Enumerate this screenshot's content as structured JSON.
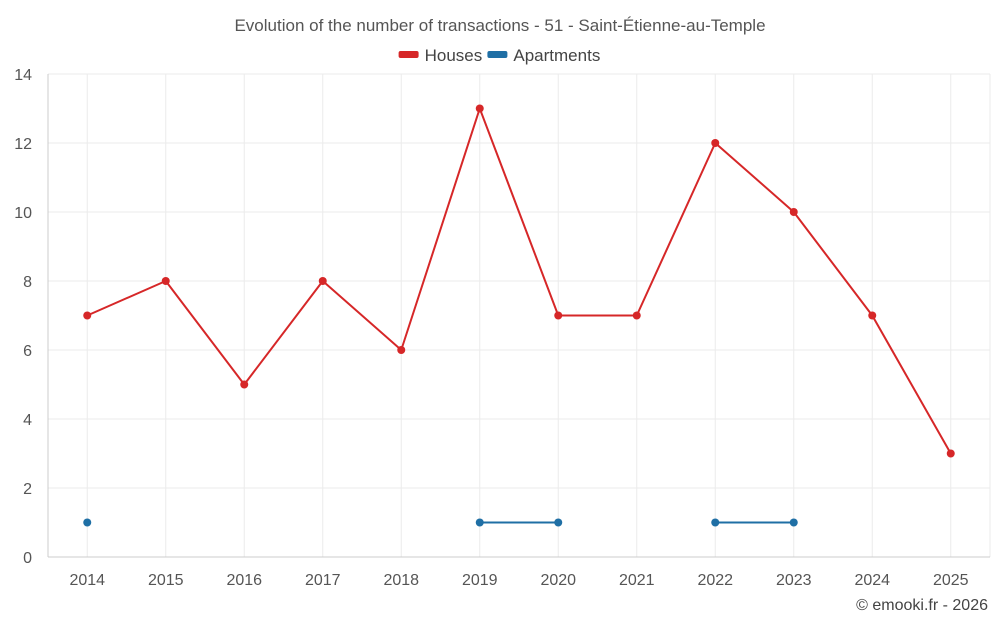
{
  "chart_data": {
    "type": "line",
    "title": "Evolution of the number of transactions - 51 - Saint-Étienne-au-Temple",
    "categories": [
      "2014",
      "2015",
      "2016",
      "2017",
      "2018",
      "2019",
      "2020",
      "2021",
      "2022",
      "2023",
      "2024",
      "2025"
    ],
    "series": [
      {
        "name": "Houses",
        "color": "#d62728",
        "values": [
          7,
          8,
          5,
          8,
          6,
          13,
          7,
          7,
          12,
          10,
          7,
          3
        ]
      },
      {
        "name": "Apartments",
        "color": "#1f6fa5",
        "values": [
          1,
          null,
          null,
          null,
          null,
          1,
          1,
          null,
          1,
          1,
          null,
          null
        ]
      }
    ],
    "ylim": [
      0,
      14
    ],
    "yticks": [
      0,
      2,
      4,
      6,
      8,
      10,
      12,
      14
    ],
    "xlabel": "",
    "ylabel": "",
    "legend_position": "top-center",
    "grid": true
  },
  "credit": "© emooki.fr - 2026"
}
